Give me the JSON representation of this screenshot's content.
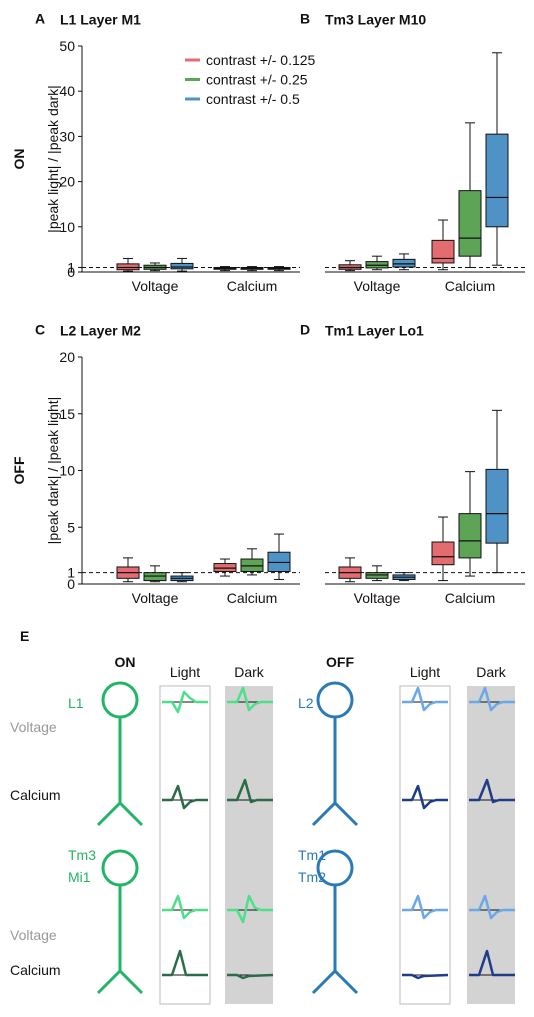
{
  "chart_data": [
    {
      "type": "box",
      "letter": "A",
      "title": "L1 Layer M1",
      "row_label": "ON",
      "ylabel": "|peak light| / |peak dark|",
      "ylim": [
        0,
        50
      ],
      "yticks": [
        0,
        1,
        10,
        20,
        30,
        40,
        50
      ],
      "reference_line": 1,
      "legend": true,
      "categories": [
        "Voltage",
        "Calcium"
      ],
      "series": [
        {
          "name": "contrast +/- 0.125",
          "color": "#e36c70",
          "whisker_low": [
            0.2,
            0.3
          ],
          "q1": [
            0.5,
            0.6
          ],
          "median": [
            1.0,
            0.8
          ],
          "q3": [
            1.8,
            1.0
          ],
          "whisker_high": [
            3.0,
            1.2
          ]
        },
        {
          "name": "contrast +/- 0.25",
          "color": "#5da456",
          "whisker_low": [
            0.3,
            0.3
          ],
          "q1": [
            0.6,
            0.6
          ],
          "median": [
            1.0,
            0.8
          ],
          "q3": [
            1.5,
            1.0
          ],
          "whisker_high": [
            2.0,
            1.2
          ]
        },
        {
          "name": "contrast +/- 0.5",
          "color": "#4e92c6",
          "whisker_low": [
            0.2,
            0.3
          ],
          "q1": [
            0.7,
            0.6
          ],
          "median": [
            1.1,
            0.8
          ],
          "q3": [
            1.9,
            1.0
          ],
          "whisker_high": [
            3.0,
            1.2
          ]
        }
      ]
    },
    {
      "type": "box",
      "letter": "B",
      "title": "Tm3 Layer M10",
      "ylim": [
        0,
        50
      ],
      "reference_line": 1,
      "categories": [
        "Voltage",
        "Calcium"
      ],
      "series": [
        {
          "color": "#e36c70",
          "whisker_low": [
            0.3,
            0.5
          ],
          "q1": [
            0.6,
            2.0
          ],
          "median": [
            1.0,
            3.0
          ],
          "q3": [
            1.6,
            7.0
          ],
          "whisker_high": [
            2.5,
            11.5
          ]
        },
        {
          "color": "#5da456",
          "whisker_low": [
            0.5,
            1.0
          ],
          "q1": [
            0.9,
            3.5
          ],
          "median": [
            1.5,
            7.5
          ],
          "q3": [
            2.3,
            18.0
          ],
          "whisker_high": [
            3.5,
            33.0
          ]
        },
        {
          "color": "#4e92c6",
          "whisker_low": [
            0.5,
            1.5
          ],
          "q1": [
            1.1,
            10.0
          ],
          "median": [
            1.8,
            16.5
          ],
          "q3": [
            2.8,
            30.5
          ],
          "whisker_high": [
            4.0,
            48.5
          ]
        }
      ]
    },
    {
      "type": "box",
      "letter": "C",
      "title": "L2 Layer M2",
      "row_label": "OFF",
      "ylabel": "|peak dark| / |peak light|",
      "ylim": [
        0,
        20
      ],
      "yticks": [
        0,
        1,
        5,
        10,
        15,
        20
      ],
      "reference_line": 1,
      "categories": [
        "Voltage",
        "Calcium"
      ],
      "series": [
        {
          "color": "#e36c70",
          "whisker_low": [
            0.2,
            0.7
          ],
          "q1": [
            0.5,
            1.1
          ],
          "median": [
            1.0,
            1.4
          ],
          "q3": [
            1.5,
            1.8
          ],
          "whisker_high": [
            2.3,
            2.2
          ]
        },
        {
          "color": "#5da456",
          "whisker_low": [
            0.2,
            0.8
          ],
          "q1": [
            0.3,
            1.1
          ],
          "median": [
            0.7,
            1.6
          ],
          "q3": [
            1.0,
            2.2
          ],
          "whisker_high": [
            1.6,
            3.1
          ]
        },
        {
          "color": "#4e92c6",
          "whisker_low": [
            0.2,
            0.4
          ],
          "q1": [
            0.3,
            1.1
          ],
          "median": [
            0.5,
            1.9
          ],
          "q3": [
            0.7,
            2.8
          ],
          "whisker_high": [
            1.0,
            4.4
          ]
        }
      ]
    },
    {
      "type": "box",
      "letter": "D",
      "title": "Tm1 Layer Lo1",
      "ylim": [
        0,
        20
      ],
      "reference_line": 1,
      "categories": [
        "Voltage",
        "Calcium"
      ],
      "series": [
        {
          "color": "#e36c70",
          "whisker_low": [
            0.2,
            0.3
          ],
          "q1": [
            0.5,
            1.7
          ],
          "median": [
            1.0,
            2.4
          ],
          "q3": [
            1.5,
            3.7
          ],
          "whisker_high": [
            2.3,
            5.9
          ]
        },
        {
          "color": "#5da456",
          "whisker_low": [
            0.3,
            0.7
          ],
          "q1": [
            0.5,
            2.3
          ],
          "median": [
            0.8,
            3.8
          ],
          "q3": [
            1.0,
            6.2
          ],
          "whisker_high": [
            1.6,
            9.9
          ]
        },
        {
          "color": "#4e92c6",
          "whisker_low": [
            0.3,
            1.0
          ],
          "q1": [
            0.4,
            3.6
          ],
          "median": [
            0.6,
            6.2
          ],
          "q3": [
            0.8,
            10.1
          ],
          "whisker_high": [
            1.0,
            15.3
          ]
        }
      ]
    }
  ],
  "diagram": {
    "letter": "E",
    "columns": [
      "Light",
      "Dark"
    ],
    "row_labels": [
      "Voltage",
      "Calcium"
    ],
    "groups": [
      {
        "title": "ON",
        "color": "#22b566",
        "neurons": [
          [
            "L1"
          ],
          [
            "Tm3",
            "Mi1"
          ]
        ]
      },
      {
        "title": "OFF",
        "color": "#2a7ab8",
        "neurons": [
          [
            "L2"
          ],
          [
            "Tm1",
            "Tm2"
          ]
        ]
      }
    ]
  }
}
